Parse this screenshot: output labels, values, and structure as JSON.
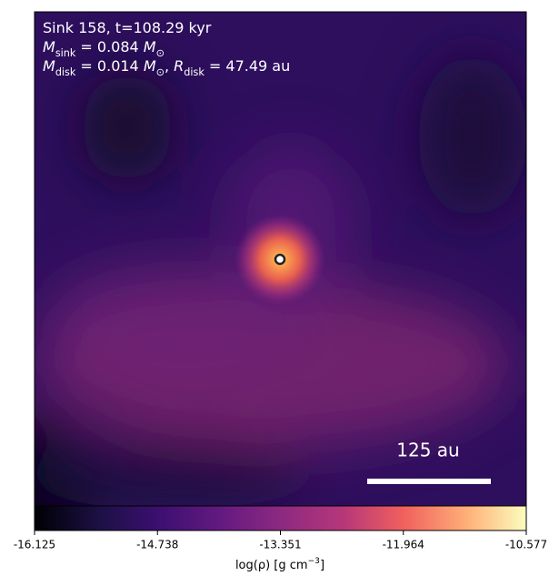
{
  "chart_data": {
    "type": "density-map",
    "title_lines": [
      [
        {
          "text": "Sink 158, t=108.29 kyr",
          "style": "normal"
        }
      ],
      [
        {
          "text": "M",
          "style": "italic"
        },
        {
          "text": "sink",
          "style": "sub"
        },
        {
          "text": " = 0.084 ",
          "style": "normal"
        },
        {
          "text": "M",
          "style": "italic"
        },
        {
          "text": "⊙",
          "style": "sub"
        }
      ],
      [
        {
          "text": "M",
          "style": "italic"
        },
        {
          "text": "disk",
          "style": "sub"
        },
        {
          "text": " = 0.014 ",
          "style": "normal"
        },
        {
          "text": "M",
          "style": "italic"
        },
        {
          "text": "⊙",
          "style": "sub"
        },
        {
          "text": ", ",
          "style": "normal"
        },
        {
          "text": "R",
          "style": "italic"
        },
        {
          "text": "disk",
          "style": "sub"
        },
        {
          "text": " = 47.49 au",
          "style": "normal"
        }
      ]
    ],
    "scale_bar_label": "125 au",
    "colormap": "magma",
    "clim": [
      -16.125,
      -10.577
    ],
    "cticks": [
      -16.125,
      -14.738,
      -13.351,
      -11.964,
      -10.577
    ],
    "colorbar_label": [
      {
        "text": "log(ρ) [g cm",
        "style": "normal"
      },
      {
        "text": "−3",
        "style": "sup"
      },
      {
        "text": "]",
        "style": "normal"
      }
    ]
  }
}
